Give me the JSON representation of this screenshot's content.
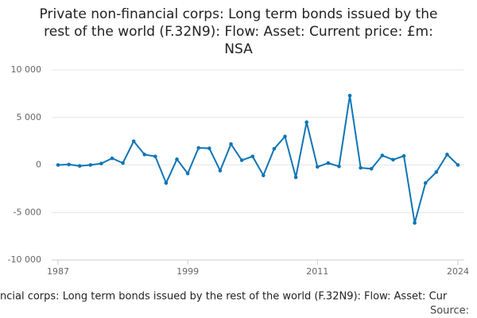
{
  "chart_data": {
    "type": "line",
    "title_lines": [
      "Private non-financial corps: Long term bonds issued by the",
      "rest of the world (F.32N9): Flow: Asset: Current price: £m:",
      "NSA"
    ],
    "x_label": "ncial corps: Long term bonds issued by the rest of the world (F.32N9): Flow: Asset: Cur",
    "source": "Source:",
    "x": [
      1987,
      1988,
      1989,
      1990,
      1991,
      1992,
      1993,
      1994,
      1995,
      1996,
      1997,
      1998,
      1999,
      2000,
      2001,
      2002,
      2003,
      2004,
      2005,
      2006,
      2007,
      2008,
      2009,
      2010,
      2011,
      2012,
      2013,
      2014,
      2015,
      2016,
      2017,
      2018,
      2019,
      2020,
      2021,
      2022,
      2023,
      2024
    ],
    "series": [
      {
        "color": "#0f75b5",
        "values": [
          0,
          50,
          -100,
          0,
          150,
          700,
          200,
          2500,
          1100,
          900,
          -1900,
          600,
          -900,
          1800,
          1750,
          -600,
          2200,
          500,
          900,
          -1100,
          1700,
          3000,
          -1300,
          4500,
          -200,
          200,
          -150,
          7300,
          -300,
          -400,
          1000,
          550,
          950,
          -6100,
          -1900,
          -750,
          1100,
          0
        ]
      }
    ],
    "xlim": [
      1987,
      2024
    ],
    "xticks": [
      1987,
      1999,
      2011,
      2024
    ],
    "ylim": [
      -10000,
      10000
    ],
    "yticks": [
      {
        "value": -10000,
        "label": "-10 000"
      },
      {
        "value": -5000,
        "label": "-5 000"
      },
      0,
      {
        "value": 5000,
        "label": "5 000"
      },
      {
        "value": 10000,
        "label": "10 000"
      }
    ],
    "grid": true
  }
}
